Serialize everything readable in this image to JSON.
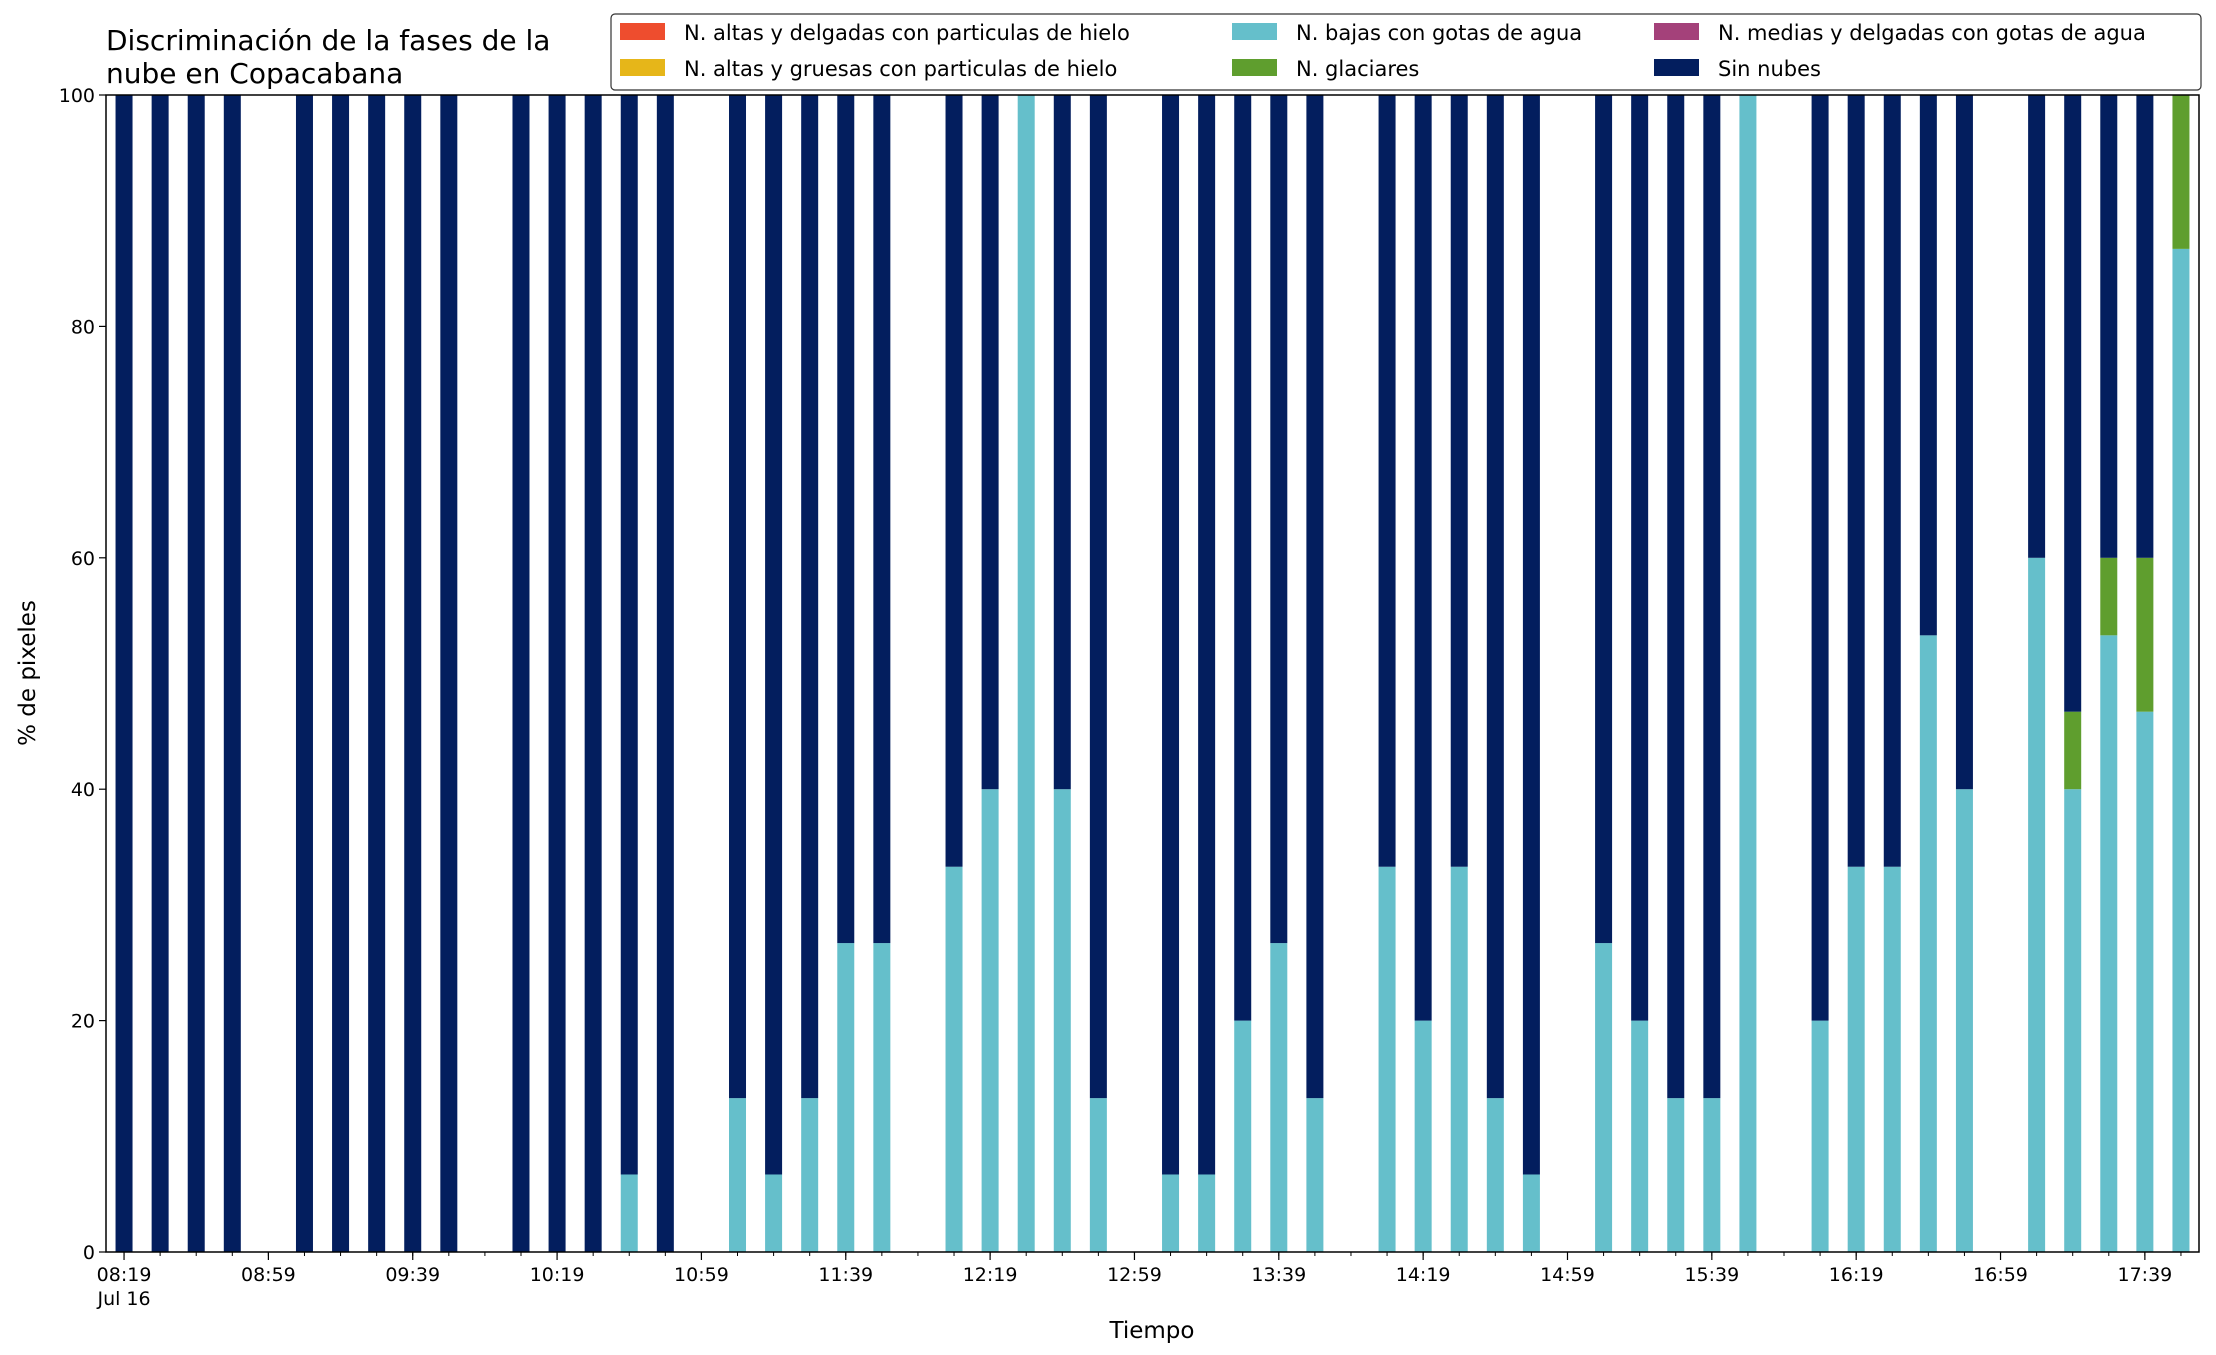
{
  "chart_data": {
    "type": "bar",
    "stacked": true,
    "title_lines": [
      "Discriminación de la fases de la",
      "nube en Copacabana"
    ],
    "xlabel": "Tiempo",
    "ylabel": "% de pixeles",
    "ylim": [
      0,
      100
    ],
    "yticks": [
      "0",
      "20",
      "40",
      "60",
      "80",
      "100"
    ],
    "xlim_minutes": [
      "08:14",
      "17:54"
    ],
    "xticks": [
      {
        "time": "08:19",
        "label": "08:19",
        "sublabel": "Jul 16"
      },
      {
        "time": "08:59",
        "label": "08:59"
      },
      {
        "time": "09:39",
        "label": "09:39"
      },
      {
        "time": "10:19",
        "label": "10:19"
      },
      {
        "time": "10:59",
        "label": "10:59"
      },
      {
        "time": "11:39",
        "label": "11:39"
      },
      {
        "time": "12:19",
        "label": "12:19"
      },
      {
        "time": "12:59",
        "label": "12:59"
      },
      {
        "time": "13:39",
        "label": "13:39"
      },
      {
        "time": "14:19",
        "label": "14:19"
      },
      {
        "time": "14:59",
        "label": "14:59"
      },
      {
        "time": "15:39",
        "label": "15:39"
      },
      {
        "time": "16:19",
        "label": "16:19"
      },
      {
        "time": "16:59",
        "label": "16:59"
      },
      {
        "time": "17:39",
        "label": "17:39"
      }
    ],
    "minor_tick_step_minutes": 10,
    "legend_position": "top-right",
    "legend": [
      {
        "label": "N. altas y delgadas con particulas de hielo",
        "color": "#ee4d2e"
      },
      {
        "label": "N. altas y gruesas con particulas de hielo",
        "color": "#e6b619"
      },
      {
        "label": "N. bajas con gotas de agua",
        "color": "#65bfcb"
      },
      {
        "label": "N. glaciares",
        "color": "#5f9e2e"
      },
      {
        "label": "N. medias y delgadas con gotas de agua",
        "color": "#a4417a"
      },
      {
        "label": "Sin nubes",
        "color": "#031e5e"
      }
    ],
    "series": [
      {
        "name": "N. bajas con gotas de agua",
        "color": "#65bfcb"
      },
      {
        "name": "N. glaciares",
        "color": "#5f9e2e"
      },
      {
        "name": "Sin nubes",
        "color": "#031e5e"
      }
    ],
    "bars": [
      {
        "time": "08:19",
        "values": [
          0,
          0,
          100
        ]
      },
      {
        "time": "08:29",
        "values": [
          0,
          0,
          100
        ]
      },
      {
        "time": "08:39",
        "values": [
          0,
          0,
          100
        ]
      },
      {
        "time": "08:49",
        "values": [
          0,
          0,
          100
        ]
      },
      {
        "time": "09:09",
        "values": [
          0,
          0,
          100
        ]
      },
      {
        "time": "09:19",
        "values": [
          0,
          0,
          100
        ]
      },
      {
        "time": "09:29",
        "values": [
          0,
          0,
          100
        ]
      },
      {
        "time": "09:39",
        "values": [
          0,
          0,
          100
        ]
      },
      {
        "time": "09:49",
        "values": [
          0,
          0,
          100
        ]
      },
      {
        "time": "10:09",
        "values": [
          0,
          0,
          100
        ]
      },
      {
        "time": "10:19",
        "values": [
          0,
          0,
          100
        ]
      },
      {
        "time": "10:29",
        "values": [
          0,
          0,
          100
        ]
      },
      {
        "time": "10:39",
        "values": [
          6.7,
          0,
          93.3
        ]
      },
      {
        "time": "10:49",
        "values": [
          0,
          0,
          100
        ]
      },
      {
        "time": "11:09",
        "values": [
          13.3,
          0,
          86.7
        ]
      },
      {
        "time": "11:19",
        "values": [
          6.7,
          0,
          93.3
        ]
      },
      {
        "time": "11:29",
        "values": [
          13.3,
          0,
          86.7
        ]
      },
      {
        "time": "11:39",
        "values": [
          26.7,
          0,
          73.3
        ]
      },
      {
        "time": "11:49",
        "values": [
          26.7,
          0,
          73.3
        ]
      },
      {
        "time": "12:09",
        "values": [
          33.3,
          0,
          66.7
        ]
      },
      {
        "time": "12:19",
        "values": [
          40,
          0,
          60
        ]
      },
      {
        "time": "12:29",
        "values": [
          100,
          0,
          0
        ]
      },
      {
        "time": "12:39",
        "values": [
          40,
          0,
          60
        ]
      },
      {
        "time": "12:49",
        "values": [
          13.3,
          0,
          86.7
        ]
      },
      {
        "time": "13:09",
        "values": [
          6.7,
          0,
          93.3
        ]
      },
      {
        "time": "13:19",
        "values": [
          6.7,
          0,
          93.3
        ]
      },
      {
        "time": "13:29",
        "values": [
          20,
          0,
          80
        ]
      },
      {
        "time": "13:39",
        "values": [
          26.7,
          0,
          73.3
        ]
      },
      {
        "time": "13:49",
        "values": [
          13.3,
          0,
          86.7
        ]
      },
      {
        "time": "14:09",
        "values": [
          33.3,
          0,
          66.7
        ]
      },
      {
        "time": "14:19",
        "values": [
          20,
          0,
          80
        ]
      },
      {
        "time": "14:29",
        "values": [
          33.3,
          0,
          66.7
        ]
      },
      {
        "time": "14:39",
        "values": [
          13.3,
          0,
          86.7
        ]
      },
      {
        "time": "14:49",
        "values": [
          6.7,
          0,
          93.3
        ]
      },
      {
        "time": "15:09",
        "values": [
          26.7,
          0,
          73.3
        ]
      },
      {
        "time": "15:19",
        "values": [
          20,
          0,
          80
        ]
      },
      {
        "time": "15:29",
        "values": [
          13.3,
          0,
          86.7
        ]
      },
      {
        "time": "15:39",
        "values": [
          13.3,
          0,
          86.7
        ]
      },
      {
        "time": "15:49",
        "values": [
          100,
          0,
          0
        ]
      },
      {
        "time": "16:09",
        "values": [
          20,
          0,
          80
        ]
      },
      {
        "time": "16:19",
        "values": [
          33.3,
          0,
          66.7
        ]
      },
      {
        "time": "16:29",
        "values": [
          33.3,
          0,
          66.7
        ]
      },
      {
        "time": "16:39",
        "values": [
          53.3,
          0,
          46.7
        ]
      },
      {
        "time": "16:49",
        "values": [
          40,
          0,
          60
        ]
      },
      {
        "time": "17:09",
        "values": [
          60,
          0,
          40
        ]
      },
      {
        "time": "17:19",
        "values": [
          40,
          6.7,
          53.3
        ]
      },
      {
        "time": "17:29",
        "values": [
          53.3,
          6.7,
          40
        ]
      },
      {
        "time": "17:39",
        "values": [
          46.7,
          13.3,
          40
        ]
      },
      {
        "time": "17:49",
        "values": [
          86.7,
          13.3,
          0
        ]
      }
    ]
  }
}
